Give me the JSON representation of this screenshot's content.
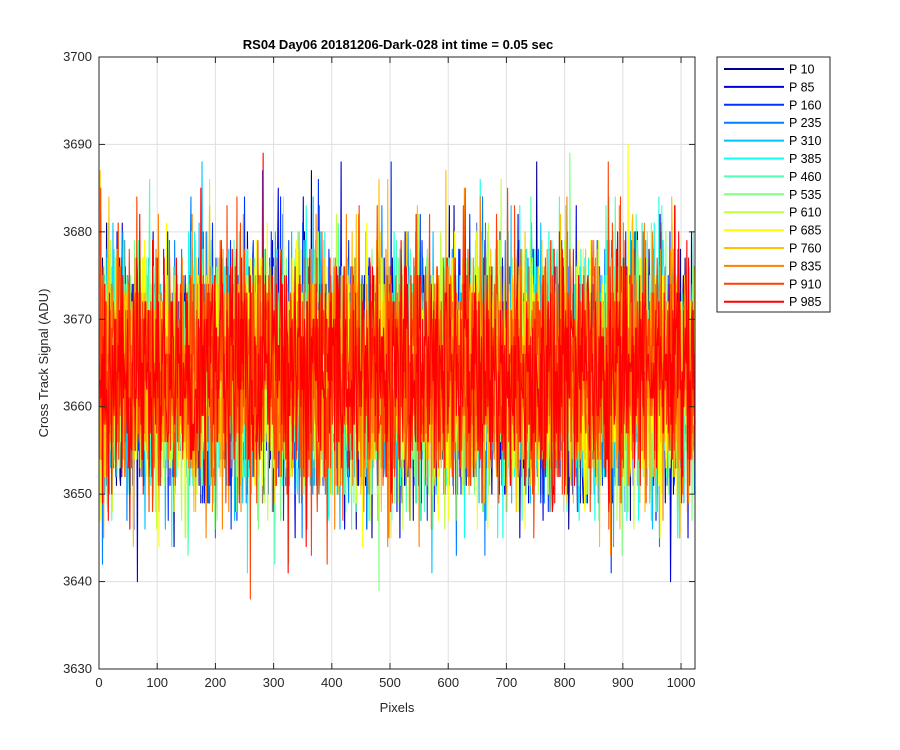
{
  "chart_data": {
    "type": "line",
    "title": "RS04 Day06 20181206-Dark-028 int time = 0.05 sec",
    "xlabel": "Pixels",
    "ylabel": "Cross Track Signal (ADU)",
    "xlim": [
      0,
      1024
    ],
    "ylim": [
      3630,
      3700
    ],
    "xticks": [
      "0",
      "100",
      "200",
      "300",
      "400",
      "500",
      "600",
      "700",
      "800",
      "900",
      "1000"
    ],
    "yticks": [
      "3630",
      "3640",
      "3650",
      "3660",
      "3670",
      "3680",
      "3690",
      "3700"
    ],
    "grid": true,
    "legend_position": "outside-right",
    "noise": {
      "n_points": 1024,
      "mean": 3664,
      "sigma": 7,
      "min": 3637,
      "max": 3692
    },
    "series": [
      {
        "name": "P 10",
        "color": "#00008f",
        "seed": 10
      },
      {
        "name": "P 85",
        "color": "#0000d9",
        "seed": 85
      },
      {
        "name": "P 160",
        "color": "#0033ff",
        "seed": 160
      },
      {
        "name": "P 235",
        "color": "#0080ff",
        "seed": 235
      },
      {
        "name": "P 310",
        "color": "#00c0ff",
        "seed": 310
      },
      {
        "name": "P 385",
        "color": "#10ffef",
        "seed": 385
      },
      {
        "name": "P 460",
        "color": "#50ffaf",
        "seed": 460
      },
      {
        "name": "P 535",
        "color": "#80ff80",
        "seed": 535
      },
      {
        "name": "P 610",
        "color": "#c0ff40",
        "seed": 610
      },
      {
        "name": "P 685",
        "color": "#ffff00",
        "seed": 685
      },
      {
        "name": "P 760",
        "color": "#ffc000",
        "seed": 760
      },
      {
        "name": "P 835",
        "color": "#ff8000",
        "seed": 835
      },
      {
        "name": "P 910",
        "color": "#ff4000",
        "seed": 910
      },
      {
        "name": "P 985",
        "color": "#ff0000",
        "seed": 985
      }
    ]
  }
}
